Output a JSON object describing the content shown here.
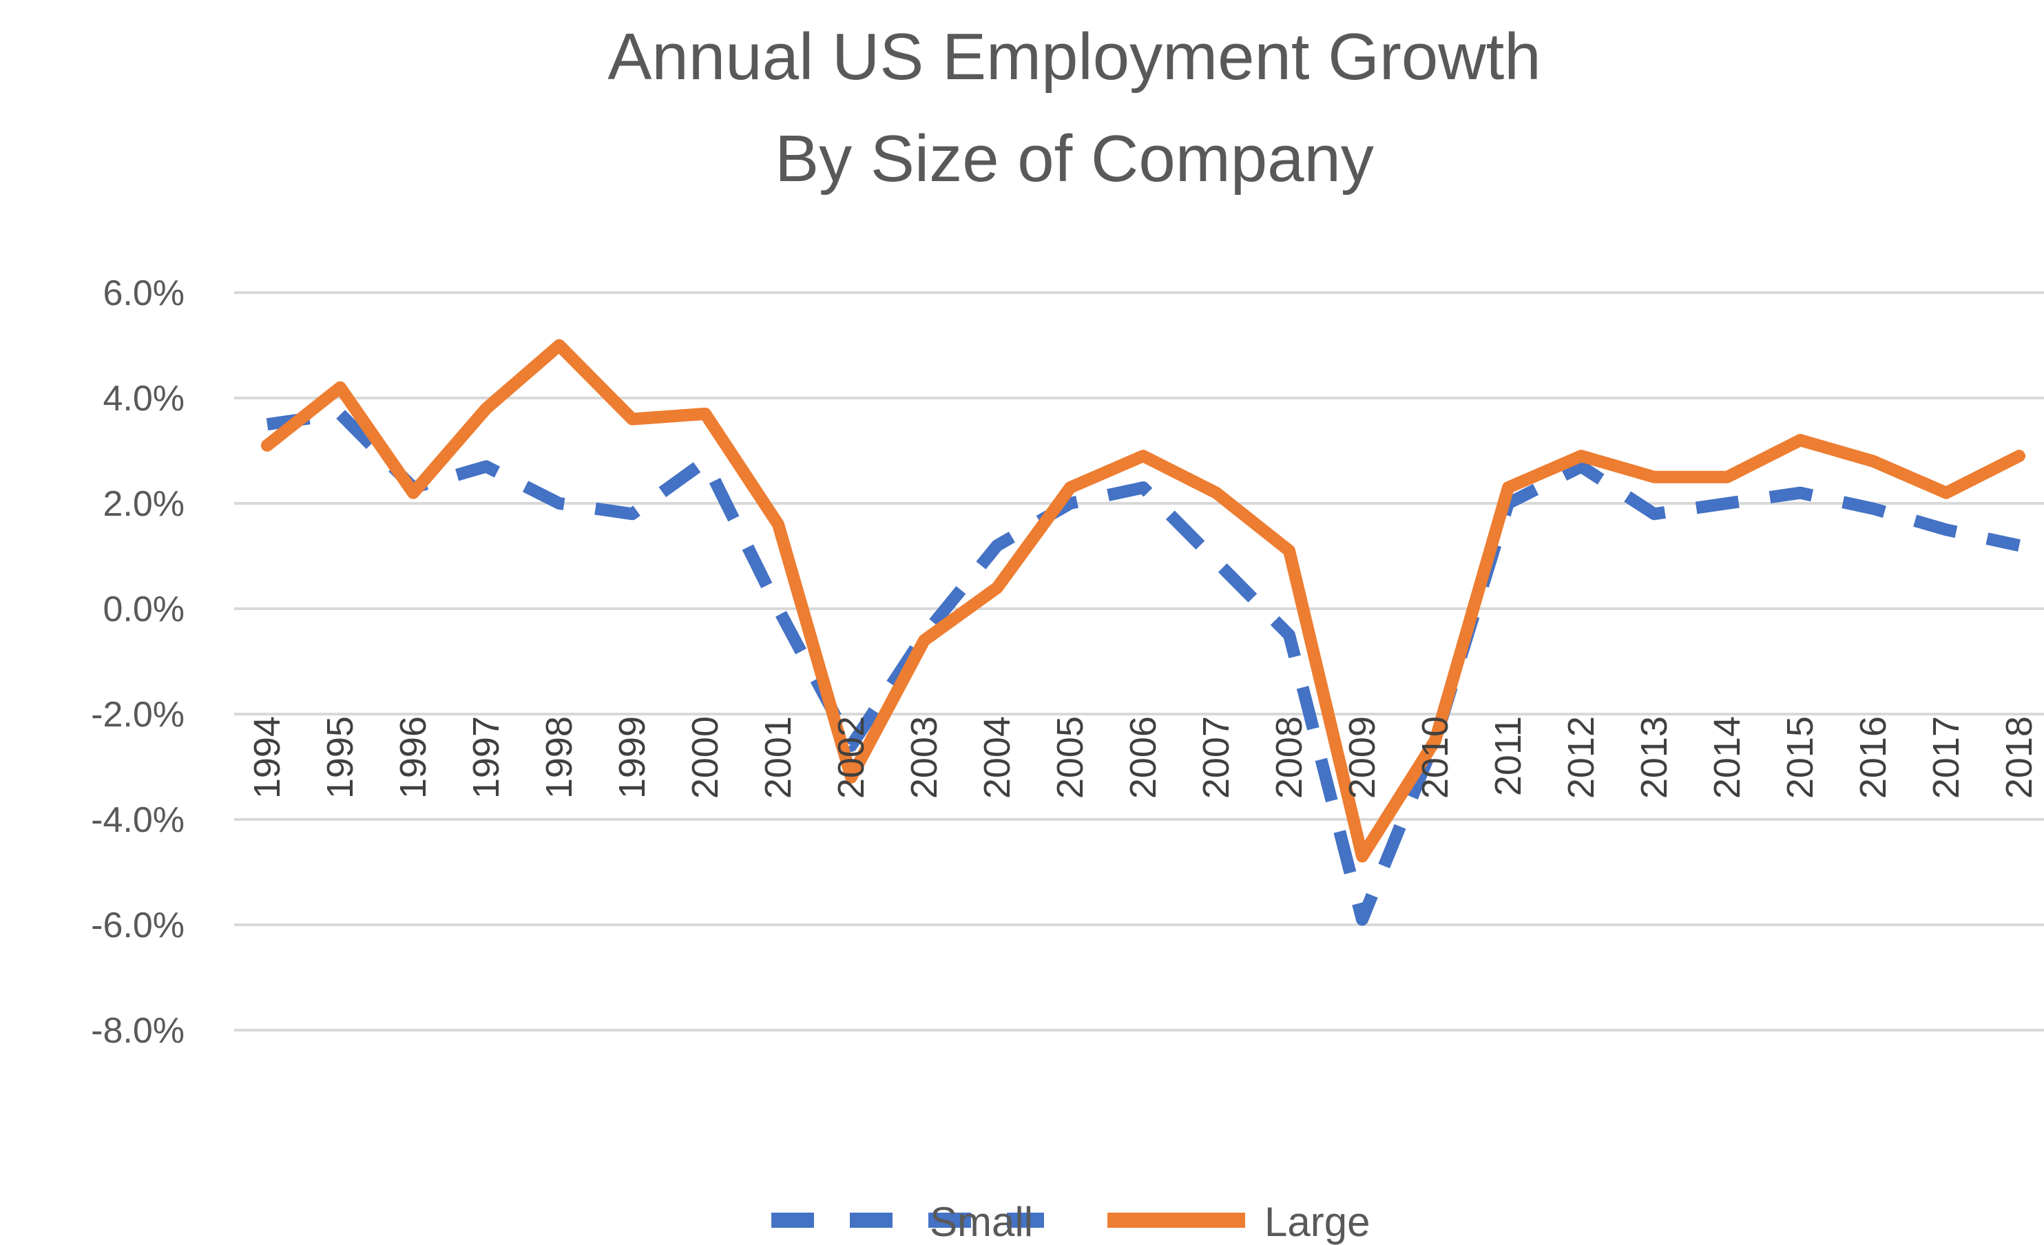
{
  "chart_data": {
    "type": "line",
    "title_lines": [
      "Annual US Employment Growth",
      "By Size of Company"
    ],
    "x": [
      "1994",
      "1995",
      "1996",
      "1997",
      "1998",
      "1999",
      "2000",
      "2001",
      "2002",
      "2003",
      "2004",
      "2005",
      "2006",
      "2007",
      "2008",
      "2009",
      "2010",
      "2011",
      "2012",
      "2013",
      "2014",
      "2015",
      "2016",
      "2017",
      "2018"
    ],
    "series": [
      {
        "name": "Small",
        "color": "#4472C4",
        "style": "dashed",
        "values": [
          3.5,
          3.7,
          2.3,
          2.7,
          2.0,
          1.8,
          2.8,
          0.0,
          -2.6,
          -0.5,
          1.2,
          2.0,
          2.3,
          0.9,
          -0.5,
          -5.9,
          -2.5,
          2.0,
          2.7,
          1.8,
          2.0,
          2.2,
          1.9,
          1.5,
          1.2
        ]
      },
      {
        "name": "Large",
        "color": "#ED7D31",
        "style": "solid",
        "values": [
          3.1,
          4.2,
          2.2,
          3.8,
          5.0,
          3.6,
          3.7,
          1.6,
          -3.2,
          -0.6,
          0.4,
          2.3,
          2.9,
          2.2,
          1.1,
          -4.7,
          -2.5,
          2.3,
          2.9,
          2.5,
          2.5,
          3.2,
          2.8,
          2.2,
          2.9
        ]
      }
    ],
    "y_ticks": [
      "6.0%",
      "4.0%",
      "2.0%",
      "0.0%",
      "-2.0%",
      "-4.0%",
      "-6.0%",
      "-8.0%"
    ],
    "ylim": [
      -8,
      6
    ],
    "grid": true,
    "legend_position": "bottom",
    "xlabel": "",
    "ylabel": ""
  }
}
